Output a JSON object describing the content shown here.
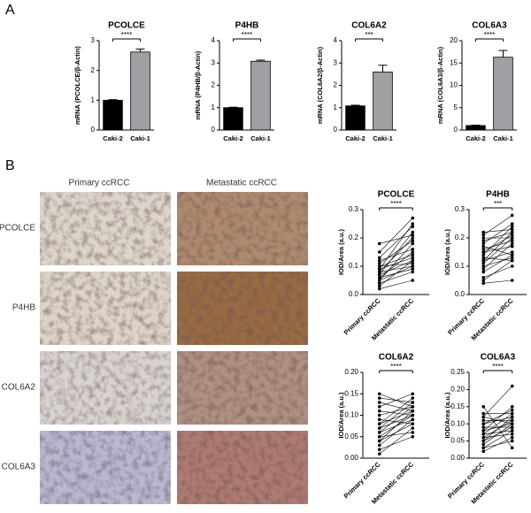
{
  "panels": [
    "A",
    "B"
  ],
  "images": {
    "columns": [
      "Primary ccRCC",
      "Metastatic ccRCC"
    ],
    "rows": [
      "PCOLCE",
      "P4HB",
      "COL6A2",
      "COL6A3"
    ]
  },
  "chart_data": [
    {
      "type": "bar",
      "title": "PCOLCE",
      "y_label": "mRNA (PCOLCE/β-Actin)",
      "categories": [
        "Caki-2",
        "Caki-1"
      ],
      "values": [
        1,
        2.62
      ],
      "errors": [
        0.02,
        0.1
      ],
      "colors": [
        "#000000",
        "#a0a0a4"
      ],
      "ylim": [
        0,
        3
      ],
      "yticks": [
        0,
        1,
        2,
        3
      ],
      "significance": "****"
    },
    {
      "type": "bar",
      "title": "P4HB",
      "y_label": "mRNA (P4HB/β-Actin)",
      "categories": [
        "Caki-2",
        "Caki-1"
      ],
      "values": [
        1,
        3.08
      ],
      "errors": [
        0.02,
        0.05
      ],
      "colors": [
        "#000000",
        "#a0a0a4"
      ],
      "ylim": [
        0,
        4
      ],
      "yticks": [
        0,
        1,
        2,
        3,
        4
      ],
      "significance": "****"
    },
    {
      "type": "bar",
      "title": "COL6A2",
      "y_label": "mRNA (COL6A2/β-Actin)",
      "categories": [
        "Caki-2",
        "Caki-1"
      ],
      "values": [
        1.08,
        2.6
      ],
      "errors": [
        0.03,
        0.3
      ],
      "colors": [
        "#000000",
        "#a0a0a4"
      ],
      "ylim": [
        0,
        4
      ],
      "yticks": [
        0,
        1,
        2,
        3,
        4
      ],
      "significance": "***"
    },
    {
      "type": "bar",
      "title": "COL6A3",
      "y_label": "mRNA (COL6A3/β-Actin)",
      "categories": [
        "Caki-2",
        "Caki-1"
      ],
      "values": [
        1,
        16.3
      ],
      "errors": [
        0.1,
        1.5
      ],
      "colors": [
        "#000000",
        "#a0a0a4"
      ],
      "ylim": [
        0,
        20
      ],
      "yticks": [
        0,
        5,
        10,
        15,
        20
      ],
      "significance": "****"
    },
    {
      "type": "paired",
      "title": "PCOLCE",
      "y_label": "IOD/Area (a.u.)",
      "categories": [
        "Primary ccRCC",
        "Metastatic ccRCC"
      ],
      "color": "#000000",
      "values": [
        [
          0.02,
          0.05
        ],
        [
          0.03,
          0.12
        ],
        [
          0.04,
          0.08
        ],
        [
          0.05,
          0.1
        ],
        [
          0.05,
          0.18
        ],
        [
          0.06,
          0.09
        ],
        [
          0.06,
          0.15
        ],
        [
          0.07,
          0.12
        ],
        [
          0.07,
          0.22
        ],
        [
          0.08,
          0.1
        ],
        [
          0.08,
          0.2
        ],
        [
          0.09,
          0.13
        ],
        [
          0.09,
          0.25
        ],
        [
          0.1,
          0.14
        ],
        [
          0.1,
          0.11
        ],
        [
          0.11,
          0.19
        ],
        [
          0.12,
          0.16
        ],
        [
          0.13,
          0.24
        ],
        [
          0.15,
          0.27
        ],
        [
          0.18,
          0.21
        ]
      ],
      "ylim": [
        0,
        0.3
      ],
      "yticks": [
        {
          "value": 0,
          "label": "0.0"
        },
        0.1,
        0.2,
        0.3
      ],
      "significance": "****"
    },
    {
      "type": "paired",
      "title": "P4HB",
      "y_label": "IOD/Area (a.u.)",
      "categories": [
        "Primary ccRCC",
        "Metastatic ccRCC"
      ],
      "color": "#000000",
      "values": [
        [
          0.04,
          0.05
        ],
        [
          0.05,
          0.12
        ],
        [
          0.06,
          0.1
        ],
        [
          0.08,
          0.14
        ],
        [
          0.09,
          0.18
        ],
        [
          0.1,
          0.13
        ],
        [
          0.11,
          0.2
        ],
        [
          0.12,
          0.15
        ],
        [
          0.12,
          0.22
        ],
        [
          0.13,
          0.12
        ],
        [
          0.14,
          0.24
        ],
        [
          0.15,
          0.17
        ],
        [
          0.15,
          0.21
        ],
        [
          0.16,
          0.19
        ],
        [
          0.17,
          0.14
        ],
        [
          0.18,
          0.25
        ],
        [
          0.19,
          0.22
        ],
        [
          0.2,
          0.2
        ],
        [
          0.21,
          0.28
        ],
        [
          0.22,
          0.23
        ]
      ],
      "ylim": [
        0,
        0.3
      ],
      "yticks": [
        {
          "value": 0,
          "label": "0.0"
        },
        0.1,
        0.2,
        0.3
      ],
      "significance": "***"
    },
    {
      "type": "paired",
      "title": "COL6A2",
      "y_label": "IOD/Area (a.u.)",
      "categories": [
        "Primary ccRCC",
        "Metastatic ccRCC"
      ],
      "color": "#000000",
      "values": [
        [
          0.01,
          0.07
        ],
        [
          0.02,
          0.05
        ],
        [
          0.03,
          0.09
        ],
        [
          0.04,
          0.08
        ],
        [
          0.04,
          0.11
        ],
        [
          0.05,
          0.1
        ],
        [
          0.05,
          0.06
        ],
        [
          0.06,
          0.12
        ],
        [
          0.06,
          0.09
        ],
        [
          0.07,
          0.13
        ],
        [
          0.07,
          0.1
        ],
        [
          0.08,
          0.11
        ],
        [
          0.08,
          0.14
        ],
        [
          0.09,
          0.08
        ],
        [
          0.1,
          0.12
        ],
        [
          0.11,
          0.1
        ],
        [
          0.12,
          0.15
        ],
        [
          0.13,
          0.11
        ],
        [
          0.14,
          0.13
        ],
        [
          0.15,
          0.12
        ]
      ],
      "ylim": [
        0,
        0.2
      ],
      "yticks": [
        {
          "value": 0,
          "label": "0.00"
        },
        0.05,
        {
          "value": 0.1,
          "label": "0.10"
        },
        0.15,
        {
          "value": 0.2,
          "label": "0.20"
        }
      ],
      "significance": "****"
    },
    {
      "type": "paired",
      "title": "COL6A3",
      "y_label": "IOD/Area (a.u.)",
      "categories": [
        "Primary ccRCC",
        "Metastatic ccRCC"
      ],
      "color": "#000000",
      "values": [
        [
          0.02,
          0.06
        ],
        [
          0.03,
          0.08
        ],
        [
          0.03,
          0.05
        ],
        [
          0.04,
          0.1
        ],
        [
          0.05,
          0.09
        ],
        [
          0.05,
          0.12
        ],
        [
          0.06,
          0.07
        ],
        [
          0.06,
          0.11
        ],
        [
          0.07,
          0.13
        ],
        [
          0.07,
          0.08
        ],
        [
          0.08,
          0.1
        ],
        [
          0.08,
          0.15
        ],
        [
          0.09,
          0.09
        ],
        [
          0.1,
          0.12
        ],
        [
          0.1,
          0.14
        ],
        [
          0.11,
          0.11
        ],
        [
          0.12,
          0.21
        ],
        [
          0.12,
          0.1
        ],
        [
          0.13,
          0.13
        ],
        [
          0.15,
          0.03
        ]
      ],
      "ylim": [
        0,
        0.25
      ],
      "yticks": [
        {
          "value": 0,
          "label": "0.00"
        },
        0.05,
        {
          "value": 0.1,
          "label": "0.10"
        },
        0.15,
        {
          "value": 0.2,
          "label": "0.20"
        },
        0.25
      ],
      "significance": "****"
    }
  ]
}
